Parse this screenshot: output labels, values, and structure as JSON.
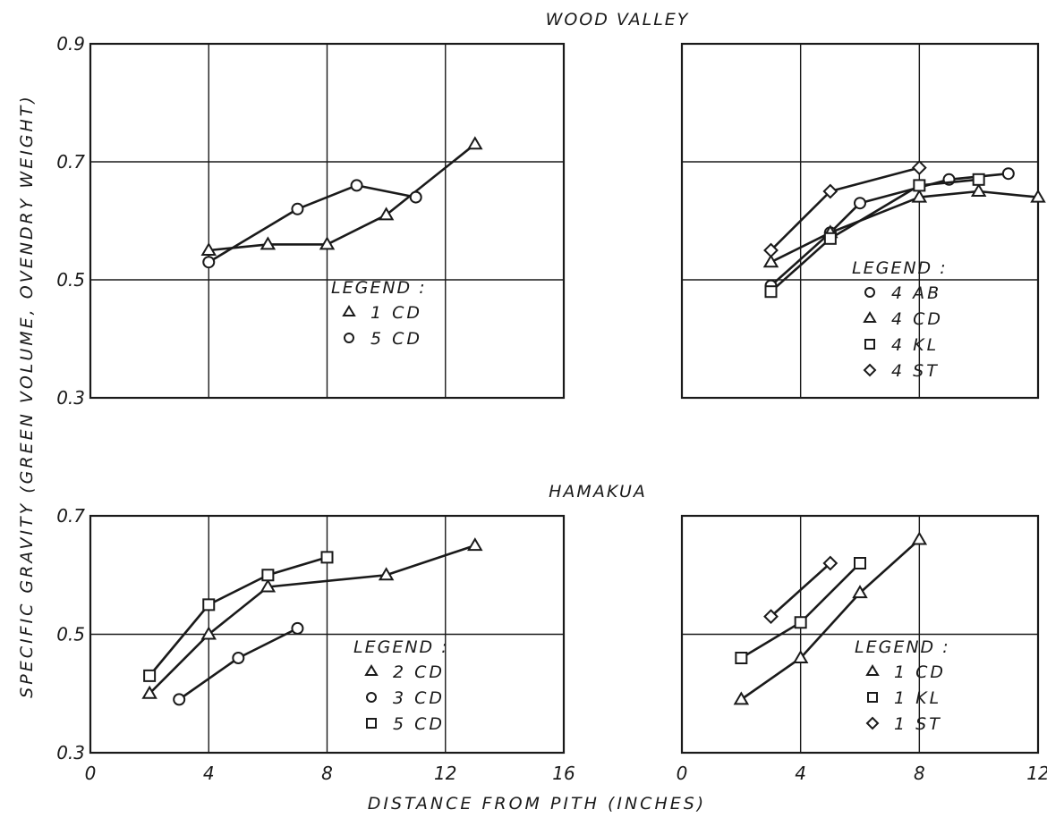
{
  "titles": {
    "top": "WOOD VALLEY",
    "bottom": "HAMAKUA"
  },
  "xlabel": "DISTANCE FROM PITH (INCHES)",
  "ylabel": "SPECIFIC GRAVITY (GREEN VOLUME, OVENDRY WEIGHT)",
  "legend_title": "LEGEND :",
  "colors": {
    "ink": "#1a1a1a",
    "paper": "#ffffff"
  },
  "chart_data": [
    {
      "type": "line",
      "group": "WOOD VALLEY",
      "xlim": [
        0,
        16
      ],
      "ylim": [
        0.3,
        0.9
      ],
      "xticks": [
        4,
        8,
        12
      ],
      "xtick_labels": [],
      "yticks": [
        0.3,
        0.5,
        0.7,
        0.9
      ],
      "ytick_labels": [
        "0.3",
        "0.5",
        "0.7",
        "0.9"
      ],
      "grid": true,
      "legend_position": "center-right",
      "series": [
        {
          "name": "1 CD",
          "marker": "triangle",
          "x": [
            4,
            6,
            8,
            10,
            13
          ],
          "y": [
            0.55,
            0.56,
            0.56,
            0.61,
            0.73
          ]
        },
        {
          "name": "5 CD",
          "marker": "circle",
          "x": [
            4,
            7,
            9,
            11
          ],
          "y": [
            0.53,
            0.62,
            0.66,
            0.64
          ]
        }
      ]
    },
    {
      "type": "line",
      "group": "WOOD VALLEY",
      "xlim": [
        0,
        12
      ],
      "ylim": [
        0.3,
        0.9
      ],
      "xticks": [
        4,
        8
      ],
      "xtick_labels": [],
      "yticks": [
        0.5,
        0.7
      ],
      "ytick_labels": [],
      "grid": true,
      "legend_position": "bottom-right",
      "series": [
        {
          "name": "4 AB",
          "marker": "circle",
          "x": [
            3,
            5,
            6,
            9,
            11
          ],
          "y": [
            0.49,
            0.58,
            0.63,
            0.67,
            0.68
          ]
        },
        {
          "name": "4 CD",
          "marker": "triangle",
          "x": [
            3,
            5,
            8,
            10,
            12
          ],
          "y": [
            0.53,
            0.58,
            0.64,
            0.65,
            0.64
          ]
        },
        {
          "name": "4 KL",
          "marker": "square",
          "x": [
            3,
            5,
            8,
            10
          ],
          "y": [
            0.48,
            0.57,
            0.66,
            0.67
          ]
        },
        {
          "name": "4 ST",
          "marker": "diamond",
          "x": [
            3,
            5,
            8
          ],
          "y": [
            0.55,
            0.65,
            0.69
          ]
        }
      ]
    },
    {
      "type": "line",
      "group": "HAMAKUA",
      "xlim": [
        0,
        16
      ],
      "ylim": [
        0.3,
        0.7
      ],
      "xticks": [
        0,
        4,
        8,
        12,
        16
      ],
      "xtick_labels": [
        "0",
        "4",
        "8",
        "12",
        "16"
      ],
      "yticks": [
        0.3,
        0.5,
        0.7
      ],
      "ytick_labels": [
        "0.3",
        "0.5",
        "0.7"
      ],
      "grid": true,
      "legend_position": "bottom-right",
      "series": [
        {
          "name": "2 CD",
          "marker": "triangle",
          "x": [
            2,
            4,
            6,
            10,
            13
          ],
          "y": [
            0.4,
            0.5,
            0.58,
            0.6,
            0.65
          ]
        },
        {
          "name": "3 CD",
          "marker": "circle",
          "x": [
            3,
            5,
            7
          ],
          "y": [
            0.39,
            0.46,
            0.51
          ]
        },
        {
          "name": "5 CD",
          "marker": "square",
          "x": [
            2,
            4,
            6,
            8
          ],
          "y": [
            0.43,
            0.55,
            0.6,
            0.63
          ]
        }
      ]
    },
    {
      "type": "line",
      "group": "HAMAKUA",
      "xlim": [
        0,
        12
      ],
      "ylim": [
        0.3,
        0.7
      ],
      "xticks": [
        0,
        4,
        8,
        12
      ],
      "xtick_labels": [
        "0",
        "4",
        "8",
        "12"
      ],
      "yticks": [
        0.5
      ],
      "ytick_labels": [],
      "grid": true,
      "legend_position": "bottom-right",
      "series": [
        {
          "name": "1 CD",
          "marker": "triangle",
          "x": [
            2,
            4,
            6,
            8
          ],
          "y": [
            0.39,
            0.46,
            0.57,
            0.66
          ]
        },
        {
          "name": "1 KL",
          "marker": "square",
          "x": [
            2,
            4,
            6
          ],
          "y": [
            0.46,
            0.52,
            0.62
          ]
        },
        {
          "name": "1 ST",
          "marker": "diamond",
          "x": [
            3,
            5
          ],
          "y": [
            0.53,
            0.62
          ]
        }
      ]
    }
  ]
}
